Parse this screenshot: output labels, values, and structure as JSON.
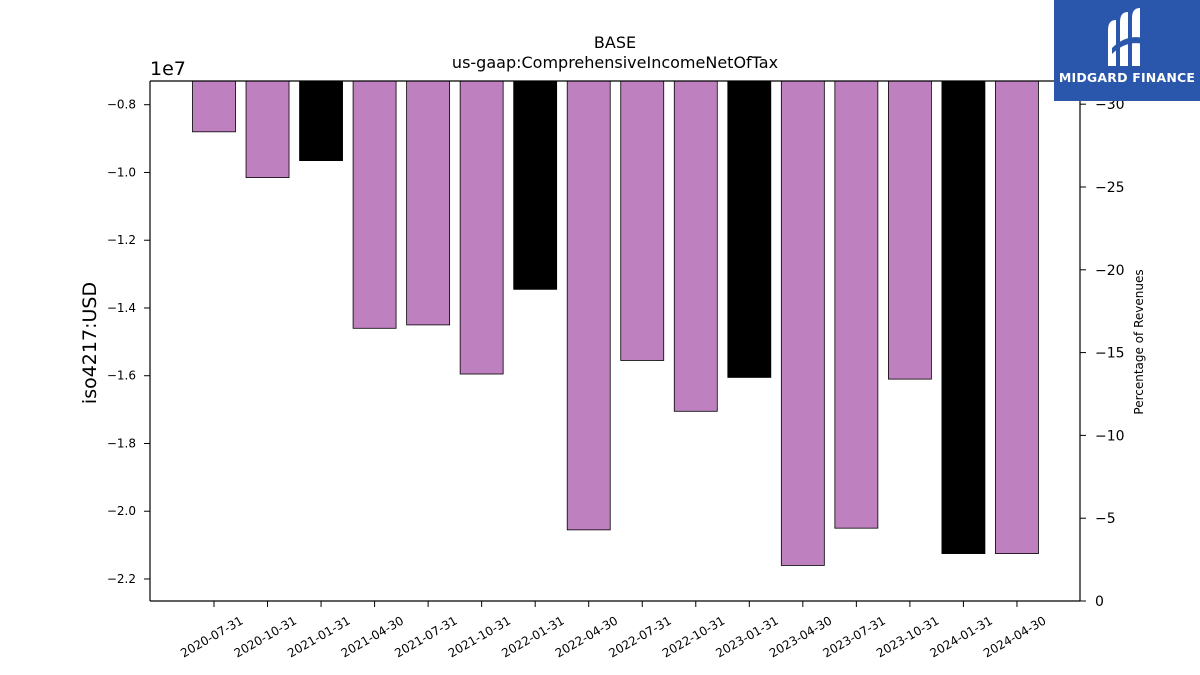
{
  "chart_data": {
    "type": "bar",
    "title": "BASE",
    "subtitle": "us-gaap:ComprehensiveIncomeNetOfTax",
    "ylabel": "iso4217:USD",
    "y2label": "Percentage of Revenues",
    "y_offset_label": "1e7",
    "categories": [
      "2020-07-31",
      "2020-10-31",
      "2021-01-31",
      "2021-04-30",
      "2021-07-31",
      "2021-10-31",
      "2022-01-31",
      "2022-04-30",
      "2022-07-31",
      "2022-10-31",
      "2023-01-31",
      "2023-04-30",
      "2023-07-31",
      "2023-10-31",
      "2024-01-31",
      "2024-04-30"
    ],
    "values": [
      -8800000,
      -10150000,
      -9650000,
      -14600000,
      -14500000,
      -15950000,
      -13450000,
      -20550000,
      -15550000,
      -17050000,
      -16050000,
      -21600000,
      -20500000,
      -16100000,
      -21250000,
      -21250000
    ],
    "bar_colors": [
      "#bf80bf",
      "#bf80bf",
      "#000000",
      "#bf80bf",
      "#bf80bf",
      "#bf80bf",
      "#000000",
      "#bf80bf",
      "#bf80bf",
      "#bf80bf",
      "#000000",
      "#bf80bf",
      "#bf80bf",
      "#bf80bf",
      "#000000",
      "#bf80bf"
    ],
    "ylim": [
      -22650000,
      -7300000
    ],
    "yticks": [
      -8000000,
      -10000000,
      -12000000,
      -14000000,
      -16000000,
      -18000000,
      -20000000,
      -22000000
    ],
    "ytick_labels": [
      "−0.8",
      "−1.0",
      "−1.2",
      "−1.4",
      "−1.6",
      "−1.8",
      "−2.0",
      "−2.2"
    ],
    "y2lim": [
      0,
      -31.4
    ],
    "y2ticks": [
      -30,
      -25,
      -20,
      -15,
      -10,
      -5,
      0
    ],
    "y2tick_labels": [
      "−30",
      "−25",
      "−20",
      "−15",
      "−10",
      "−5",
      "0"
    ],
    "grid": false,
    "legend": "none"
  },
  "logo": {
    "text": "MIDGARD FINANCE",
    "background": "#2a57ac"
  }
}
